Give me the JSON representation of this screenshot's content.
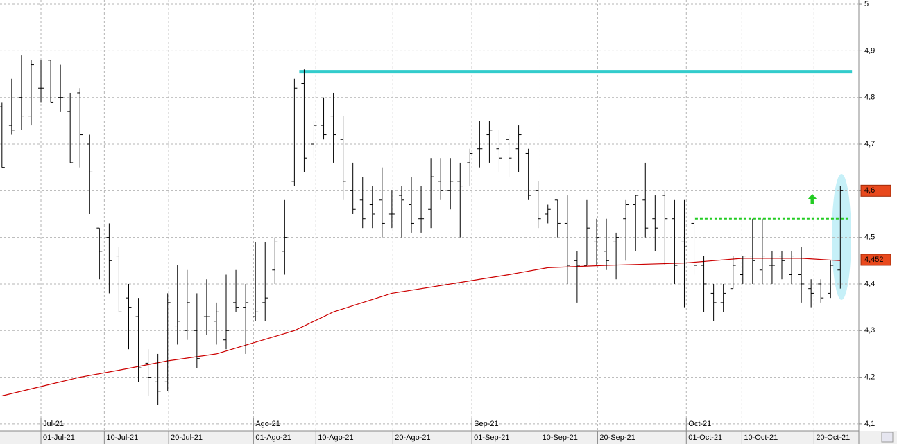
{
  "chart_data": {
    "type": "ohlc",
    "color": "#000000",
    "open": [
      4.78,
      4.74,
      4.8,
      4.76,
      4.82,
      4.88,
      4.8,
      4.77,
      4.81,
      4.7,
      4.52,
      4.5,
      4.46,
      4.37,
      4.33,
      4.23,
      4.19,
      4.19,
      4.31,
      4.3,
      4.3,
      4.33,
      4.32,
      4.28,
      4.36,
      4.35,
      4.33,
      4.36,
      4.43,
      4.47,
      4.62,
      4.83,
      4.7,
      4.74,
      4.76,
      4.71,
      4.6,
      4.58,
      4.57,
      4.58,
      4.55,
      4.59,
      4.57,
      4.54,
      4.56,
      4.62,
      4.6,
      4.62,
      4.66,
      4.69,
      4.72,
      4.69,
      4.71,
      4.69,
      4.68,
      4.6,
      4.55,
      4.58,
      4.53,
      4.45,
      4.44,
      4.49,
      4.47,
      4.49,
      4.54,
      4.57,
      4.58,
      4.54,
      4.59,
      4.54,
      4.49,
      4.53,
      4.44,
      4.38,
      4.36,
      4.39,
      4.42,
      4.46,
      4.43,
      4.44,
      4.46,
      4.42,
      4.42,
      4.39,
      4.4,
      4.38,
      4.43
    ],
    "high": [
      4.79,
      4.84,
      4.89,
      4.88,
      4.88,
      4.88,
      4.87,
      4.81,
      4.82,
      4.72,
      4.52,
      4.53,
      4.48,
      4.4,
      4.37,
      4.26,
      4.25,
      4.38,
      4.44,
      4.43,
      4.38,
      4.41,
      4.36,
      4.42,
      4.43,
      4.4,
      4.49,
      4.49,
      4.5,
      4.58,
      4.84,
      4.86,
      4.75,
      4.8,
      4.81,
      4.76,
      4.66,
      4.63,
      4.61,
      4.65,
      4.6,
      4.61,
      4.63,
      4.61,
      4.67,
      4.67,
      4.67,
      4.66,
      4.69,
      4.75,
      4.75,
      4.73,
      4.72,
      4.74,
      4.69,
      4.62,
      4.57,
      4.58,
      4.59,
      4.47,
      4.58,
      4.54,
      4.54,
      4.51,
      4.58,
      4.59,
      4.66,
      4.59,
      4.6,
      4.58,
      4.58,
      4.55,
      4.46,
      4.4,
      4.4,
      4.46,
      4.46,
      4.54,
      4.54,
      4.47,
      4.47,
      4.47,
      4.48,
      4.41,
      4.41,
      4.45,
      4.61
    ],
    "low": [
      4.65,
      4.72,
      4.73,
      4.74,
      4.79,
      4.79,
      4.77,
      4.66,
      4.65,
      4.55,
      4.41,
      4.38,
      4.34,
      4.26,
      4.19,
      4.16,
      4.14,
      4.17,
      4.27,
      4.28,
      4.22,
      4.29,
      4.27,
      4.26,
      4.34,
      4.25,
      4.32,
      4.32,
      4.4,
      4.42,
      4.61,
      4.64,
      4.67,
      4.71,
      4.66,
      4.58,
      4.55,
      4.52,
      4.52,
      4.5,
      4.52,
      4.5,
      4.51,
      4.51,
      4.52,
      4.58,
      4.56,
      4.5,
      4.61,
      4.65,
      4.66,
      4.64,
      4.63,
      4.64,
      4.58,
      4.52,
      4.53,
      4.5,
      4.4,
      4.36,
      4.44,
      4.44,
      4.43,
      4.41,
      4.45,
      4.47,
      4.5,
      4.47,
      4.44,
      4.4,
      4.35,
      4.42,
      4.34,
      4.32,
      4.34,
      4.39,
      4.4,
      4.4,
      4.4,
      4.4,
      4.41,
      4.4,
      4.36,
      4.35,
      4.36,
      4.37,
      4.39
    ],
    "close": [
      4.65,
      4.73,
      4.76,
      4.87,
      4.82,
      4.79,
      4.8,
      4.66,
      4.72,
      4.64,
      4.47,
      4.45,
      4.34,
      4.35,
      4.22,
      4.2,
      4.17,
      4.36,
      4.32,
      4.36,
      4.24,
      4.33,
      4.34,
      4.3,
      4.35,
      4.36,
      4.34,
      4.37,
      4.49,
      4.5,
      4.82,
      4.67,
      4.74,
      4.72,
      4.72,
      4.62,
      4.56,
      4.54,
      4.55,
      4.53,
      4.55,
      4.58,
      4.53,
      4.54,
      4.63,
      4.6,
      4.62,
      4.61,
      4.68,
      4.69,
      4.73,
      4.67,
      4.67,
      4.72,
      4.59,
      4.54,
      4.56,
      4.53,
      4.44,
      4.44,
      4.52,
      4.5,
      4.45,
      4.5,
      4.57,
      4.59,
      4.52,
      4.52,
      4.54,
      4.44,
      4.48,
      4.44,
      4.4,
      4.36,
      4.38,
      4.44,
      4.46,
      4.45,
      4.46,
      4.44,
      4.45,
      4.46,
      4.4,
      4.38,
      4.37,
      4.44,
      4.6
    ],
    "moving_average": {
      "color": "#cc0000",
      "x": [
        0,
        4,
        8,
        12,
        17,
        22,
        26,
        30,
        34,
        40,
        46,
        52,
        56,
        62,
        70,
        76,
        82,
        86
      ],
      "values": [
        4.16,
        4.18,
        4.2,
        4.215,
        4.235,
        4.25,
        4.275,
        4.3,
        4.34,
        4.38,
        4.4,
        4.42,
        4.435,
        4.44,
        4.445,
        4.455,
        4.455,
        4.45
      ]
    },
    "resistance": {
      "value": 4.855,
      "from": 30.5,
      "to": 87.2,
      "color": "#33cccc"
    },
    "support": {
      "value": 4.54,
      "from": 71.1,
      "to": 86.9,
      "color": "#22cc22"
    },
    "price_markers": [
      {
        "value": 4.6,
        "label": "4,6"
      },
      {
        "value": 4.452,
        "label": "4,452"
      }
    ],
    "xlim": [
      -0.2,
      87.9
    ],
    "xticks": [
      {
        "value": 4,
        "label": "01-Jul-21"
      },
      {
        "value": 10.5,
        "label": "10-Jul-21"
      },
      {
        "value": 17.1,
        "label": "20-Jul-21"
      },
      {
        "value": 25.8,
        "label": "01-Ago-21"
      },
      {
        "value": 32.2,
        "label": "10-Ago-21"
      },
      {
        "value": 40.1,
        "label": "20-Ago-21"
      },
      {
        "value": 48.2,
        "label": "01-Sep-21"
      },
      {
        "value": 55.2,
        "label": "10-Sep-21"
      },
      {
        "value": 61.1,
        "label": "20-Sep-21"
      },
      {
        "value": 70.2,
        "label": "01-Oct-21"
      },
      {
        "value": 75.9,
        "label": "10-Oct-21"
      },
      {
        "value": 83.3,
        "label": "20-Oct-21"
      }
    ],
    "month_ticks": [
      {
        "value": 4,
        "label": "Jul-21"
      },
      {
        "value": 25.8,
        "label": "Ago-21"
      },
      {
        "value": 48.2,
        "label": "Sep-21"
      },
      {
        "value": 70.2,
        "label": "Oct-21"
      }
    ],
    "ylim": [
      4.085,
      5.009
    ],
    "yticks": [
      {
        "value": 4.1,
        "label": "4,1"
      },
      {
        "value": 4.2,
        "label": "4,2"
      },
      {
        "value": 4.3,
        "label": "4,3"
      },
      {
        "value": 4.4,
        "label": "4,4"
      },
      {
        "value": 4.5,
        "label": "4,5"
      },
      {
        "value": 4.6,
        "label": "4,6"
      },
      {
        "value": 4.7,
        "label": "4,7"
      },
      {
        "value": 4.8,
        "label": "4,8"
      },
      {
        "value": 4.9,
        "label": "4,9"
      },
      5
    ],
    "grid": true
  }
}
